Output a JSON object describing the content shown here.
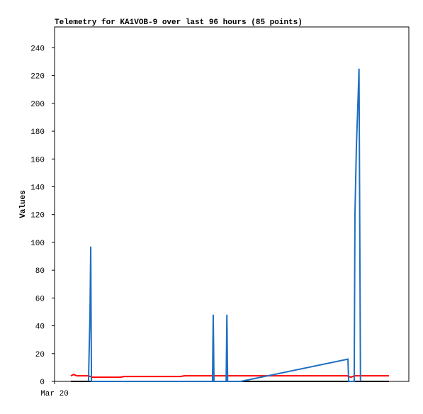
{
  "chart_data": {
    "type": "line",
    "title": "Telemetry for KA1VOB-9 over last 96 hours (85 points)",
    "y_label": "Values",
    "xlim": [
      0,
      96
    ],
    "xticks": [
      {
        "value": 0,
        "label": "Mar 20"
      }
    ],
    "ylim": [
      0,
      255
    ],
    "yticks": [
      0,
      20,
      40,
      60,
      80,
      100,
      120,
      140,
      160,
      180,
      200,
      220,
      240
    ],
    "series": [
      {
        "color": "#000000",
        "x": [
          4.4,
          90.6
        ],
        "values": [
          0,
          0
        ]
      },
      {
        "color": "#ff0000",
        "x": [
          4.4,
          5.2,
          6.0,
          9.2,
          10.2,
          17.9,
          18.8,
          34.2,
          35.1,
          79.3,
          80.3,
          81.2,
          90.6
        ],
        "values": [
          4,
          5,
          4,
          4,
          3,
          3,
          3.5,
          3.5,
          4,
          4,
          3,
          4,
          4
        ]
      },
      {
        "color": "#1f6fc0",
        "x": [
          9.2,
          9.4,
          9.6,
          9.8,
          10.0,
          42.8,
          43.0,
          43.2,
          46.5,
          46.7,
          46.9,
          50.5,
          79.5,
          79.7,
          81.2,
          81.4,
          81.8,
          82.2,
          82.5,
          82.7,
          82.9
        ],
        "values": [
          0,
          25,
          48,
          97,
          0,
          0,
          48,
          0,
          0,
          48,
          0,
          0,
          16,
          0,
          0,
          120,
          170,
          200,
          225,
          112,
          0
        ]
      }
    ]
  }
}
